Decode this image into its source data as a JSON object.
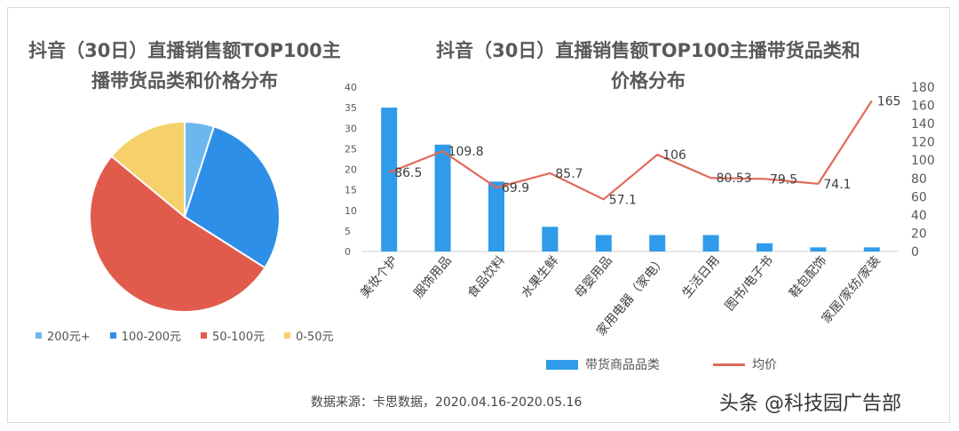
{
  "pie_title_line1": "抖音（30日）直播销售额TOP100主",
  "pie_title_line2": "播带货品类和价格分布",
  "bar_title_line1": "抖音（30日）直播销售额TOP100主播带货品类和",
  "bar_title_line2": "价格分布",
  "source": "数据来源：卡思数据，2020.04.16-2020.05.16",
  "watermark": "头条 @科技园广告部",
  "colors": {
    "pie_200plus": "#6cb8ee",
    "pie_100_200": "#2d8fe8",
    "pie_50_100": "#e15b4c",
    "pie_0_50": "#f6d06a",
    "bar": "#2f9bea",
    "line": "#e06a5a"
  },
  "chart_data": [
    {
      "type": "pie",
      "slices": [
        {
          "label": "200元+",
          "value": 5
        },
        {
          "label": "100-200元",
          "value": 29
        },
        {
          "label": "50-100元",
          "value": 52
        },
        {
          "label": "0-50元",
          "value": 14
        }
      ],
      "legend": "bottom"
    },
    {
      "type": "bar",
      "categories": [
        "美妆个护",
        "服饰用品",
        "食品饮料",
        "水果生鲜",
        "母婴用品",
        "家用电器（家电）",
        "生活日用",
        "图书/电子书",
        "鞋包配饰",
        "家居/家纺/家装"
      ],
      "series": [
        {
          "name": "带货商品品类",
          "type": "bar",
          "axis": "left",
          "values": [
            35,
            26,
            17,
            6,
            4,
            4,
            4,
            2,
            1,
            1
          ]
        },
        {
          "name": "均价",
          "type": "line",
          "axis": "right",
          "values": [
            86.5,
            109.8,
            69.9,
            85.7,
            57.1,
            106,
            80.53,
            79.5,
            74.1,
            165
          ]
        }
      ],
      "y_left": {
        "min": 0,
        "max": 40,
        "ticks": [
          0,
          5,
          10,
          15,
          20,
          25,
          30,
          35,
          40
        ]
      },
      "y_right": {
        "min": 0,
        "max": 180,
        "ticks": [
          0,
          20,
          40,
          60,
          80,
          100,
          120,
          140,
          160,
          180
        ]
      },
      "legend": "bottom"
    }
  ]
}
